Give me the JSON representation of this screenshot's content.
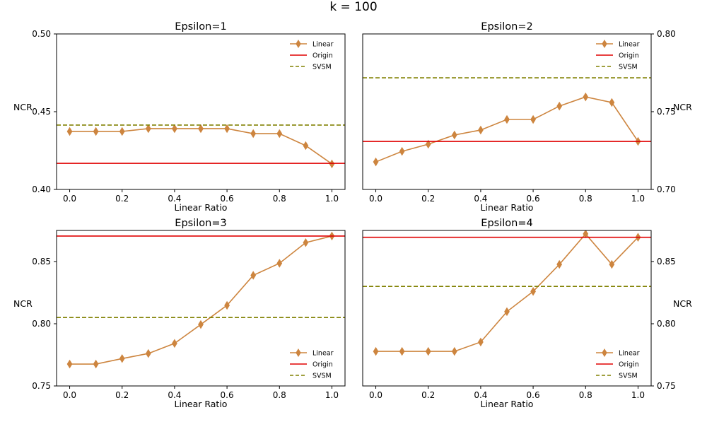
{
  "suptitle": "k = 100",
  "colors": {
    "linear": "#cd853f",
    "origin": "#e00000",
    "svsm": "#808000"
  },
  "chart_data": [
    {
      "type": "line",
      "title": "Epsilon=1",
      "xlabel": "Linear Ratio",
      "ylabel": "NCR",
      "ylabel_side": "left",
      "x": [
        0.0,
        0.1,
        0.2,
        0.3,
        0.4,
        0.5,
        0.6,
        0.7,
        0.8,
        0.9,
        1.0
      ],
      "xlim": [
        -0.05,
        1.05
      ],
      "ylim": [
        0.4,
        0.5
      ],
      "xticks": [
        "0.0",
        "0.2",
        "0.4",
        "0.6",
        "0.8",
        "1.0"
      ],
      "yticks": [
        "0.40",
        "0.45",
        "0.50"
      ],
      "legend_position": "upper-right",
      "series": [
        {
          "name": "Linear",
          "style": "marker-line",
          "values": [
            0.4373,
            0.4373,
            0.4373,
            0.4391,
            0.4391,
            0.4391,
            0.4391,
            0.4359,
            0.4359,
            0.4282,
            0.4164
          ]
        },
        {
          "name": "Origin",
          "style": "hline",
          "value": 0.4168
        },
        {
          "name": "SVSM",
          "style": "dashed-hline",
          "value": 0.4414
        }
      ]
    },
    {
      "type": "line",
      "title": "Epsilon=2",
      "xlabel": "Linear Ratio",
      "ylabel": "NCR",
      "ylabel_side": "right",
      "x": [
        0.0,
        0.1,
        0.2,
        0.3,
        0.4,
        0.5,
        0.6,
        0.7,
        0.8,
        0.9,
        1.0
      ],
      "xlim": [
        -0.05,
        1.05
      ],
      "ylim": [
        0.7,
        0.8
      ],
      "xticks": [
        "0.0",
        "0.2",
        "0.4",
        "0.6",
        "0.8",
        "1.0"
      ],
      "yticks": [
        "0.70",
        "0.75",
        "0.80"
      ],
      "legend_position": "upper-right",
      "series": [
        {
          "name": "Linear",
          "style": "marker-line",
          "values": [
            0.7177,
            0.7245,
            0.7291,
            0.735,
            0.7382,
            0.745,
            0.745,
            0.7536,
            0.7595,
            0.7559,
            0.7309
          ]
        },
        {
          "name": "Origin",
          "style": "hline",
          "value": 0.7309
        },
        {
          "name": "SVSM",
          "style": "dashed-hline",
          "value": 0.7718
        }
      ]
    },
    {
      "type": "line",
      "title": "Epsilon=3",
      "xlabel": "Linear Ratio",
      "ylabel": "NCR",
      "ylabel_side": "left",
      "x": [
        0.0,
        0.1,
        0.2,
        0.3,
        0.4,
        0.5,
        0.6,
        0.7,
        0.8,
        0.9,
        1.0
      ],
      "xlim": [
        -0.05,
        1.05
      ],
      "ylim": [
        0.75,
        0.875
      ],
      "xticks": [
        "0.0",
        "0.2",
        "0.4",
        "0.6",
        "0.8",
        "1.0"
      ],
      "yticks": [
        "0.75",
        "0.80",
        "0.85"
      ],
      "legend_position": "lower-right",
      "series": [
        {
          "name": "Linear",
          "style": "marker-line",
          "values": [
            0.7676,
            0.7676,
            0.772,
            0.7761,
            0.7842,
            0.7994,
            0.8148,
            0.8389,
            0.8486,
            0.8652,
            0.8705
          ]
        },
        {
          "name": "Origin",
          "style": "hline",
          "value": 0.8705
        },
        {
          "name": "SVSM",
          "style": "dashed-hline",
          "value": 0.805
        }
      ]
    },
    {
      "type": "line",
      "title": "Epsilon=4",
      "xlabel": "Linear Ratio",
      "ylabel": "NCR",
      "ylabel_side": "right",
      "x": [
        0.0,
        0.1,
        0.2,
        0.3,
        0.4,
        0.5,
        0.6,
        0.7,
        0.8,
        0.9,
        1.0
      ],
      "xlim": [
        -0.05,
        1.05
      ],
      "ylim": [
        0.75,
        0.875
      ],
      "xticks": [
        "0.0",
        "0.2",
        "0.4",
        "0.6",
        "0.8",
        "1.0"
      ],
      "yticks": [
        "0.75",
        "0.80",
        "0.85"
      ],
      "legend_position": "lower-right",
      "series": [
        {
          "name": "Linear",
          "style": "marker-line",
          "values": [
            0.7778,
            0.7778,
            0.7778,
            0.7778,
            0.7853,
            0.8097,
            0.826,
            0.8477,
            0.8722,
            0.8477,
            0.8695
          ]
        },
        {
          "name": "Origin",
          "style": "hline",
          "value": 0.8695
        },
        {
          "name": "SVSM",
          "style": "dashed-hline",
          "value": 0.83
        }
      ]
    }
  ]
}
